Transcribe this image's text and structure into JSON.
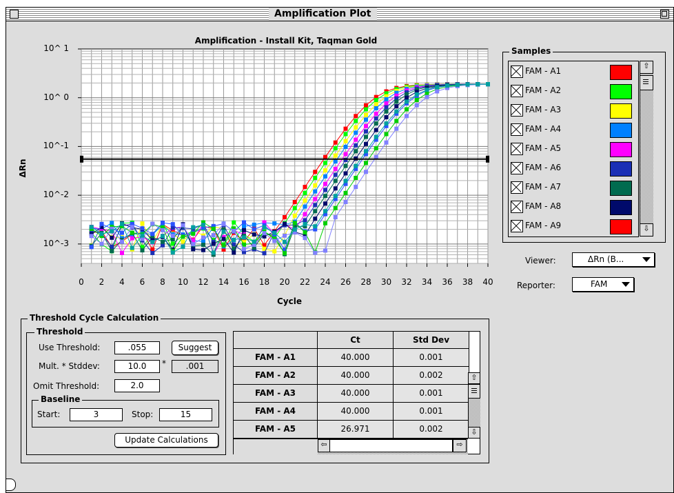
{
  "window": {
    "title": "Amplification Plot"
  },
  "chart_data": {
    "type": "line",
    "title": "Amplification - Install Kit, Taqman Gold",
    "xlabel": "Cycle",
    "ylabel": "ΔRn",
    "xlim": [
      0,
      40
    ],
    "x_ticks": [
      "0",
      "2",
      "4",
      "6",
      "8",
      "10",
      "12",
      "14",
      "16",
      "18",
      "20",
      "22",
      "24",
      "26",
      "28",
      "30",
      "32",
      "34",
      "36",
      "38",
      "40"
    ],
    "y_scale": "log",
    "ylim": [
      0.0004,
      10
    ],
    "y_ticks": [
      "10^ 1",
      "10^ 0",
      "10^-1",
      "10^-2",
      "10^-3"
    ],
    "grid": true,
    "threshold": 0.055,
    "series_note": "amplification curves rise from noise floor ~0.002 near cycle 18-24 to plateau ~1.8 at cycle 40",
    "curve_colors": [
      "#ff0000",
      "#00ff00",
      "#ffff00",
      "#0080ff",
      "#ff00ff",
      "#1a2fb5",
      "#006b4f",
      "#000a6b",
      "#2a52ff",
      "#00d000",
      "#8080ff",
      "#00a0a0"
    ]
  },
  "samples": {
    "label": "Samples",
    "items": [
      {
        "name": "FAM - A1",
        "color": "#ff0000"
      },
      {
        "name": "FAM - A2",
        "color": "#00ff00"
      },
      {
        "name": "FAM - A3",
        "color": "#ffff00"
      },
      {
        "name": "FAM - A4",
        "color": "#0080ff"
      },
      {
        "name": "FAM - A5",
        "color": "#ff00ff"
      },
      {
        "name": "FAM - A6",
        "color": "#1a2fb5"
      },
      {
        "name": "FAM - A7",
        "color": "#006b4f"
      },
      {
        "name": "FAM - A8",
        "color": "#000a6b"
      },
      {
        "name": "FAM - A9",
        "color": "#ff0000"
      }
    ]
  },
  "viewer": {
    "label": "Viewer:",
    "value": "ΔRn (B..."
  },
  "reporter": {
    "label": "Reporter:",
    "value": "FAM"
  },
  "threshold_calc": {
    "label": "Threshold Cycle Calculation",
    "threshold_group": "Threshold",
    "use_threshold_label": "Use Threshold:",
    "use_threshold_value": ".055",
    "suggest_button": "Suggest",
    "mult_stddev_label": "Mult. * Stddev:",
    "mult_stddev_value": "10.0",
    "times": "*",
    "stddev_result": ".001",
    "omit_threshold_label": "Omit Threshold:",
    "omit_threshold_value": "2.0",
    "baseline_group": "Baseline",
    "start_label": "Start:",
    "start_value": "3",
    "stop_label": "Stop:",
    "stop_value": "15",
    "update_button": "Update Calculations"
  },
  "ct_table": {
    "columns": [
      "Ct",
      "Std Dev"
    ],
    "rows": [
      {
        "name": "FAM - A1",
        "ct": "40.000",
        "std": "0.001"
      },
      {
        "name": "FAM - A2",
        "ct": "40.000",
        "std": "0.002"
      },
      {
        "name": "FAM - A3",
        "ct": "40.000",
        "std": "0.001"
      },
      {
        "name": "FAM - A4",
        "ct": "40.000",
        "std": "0.001"
      },
      {
        "name": "FAM - A5",
        "ct": "26.971",
        "std": "0.002"
      }
    ]
  }
}
